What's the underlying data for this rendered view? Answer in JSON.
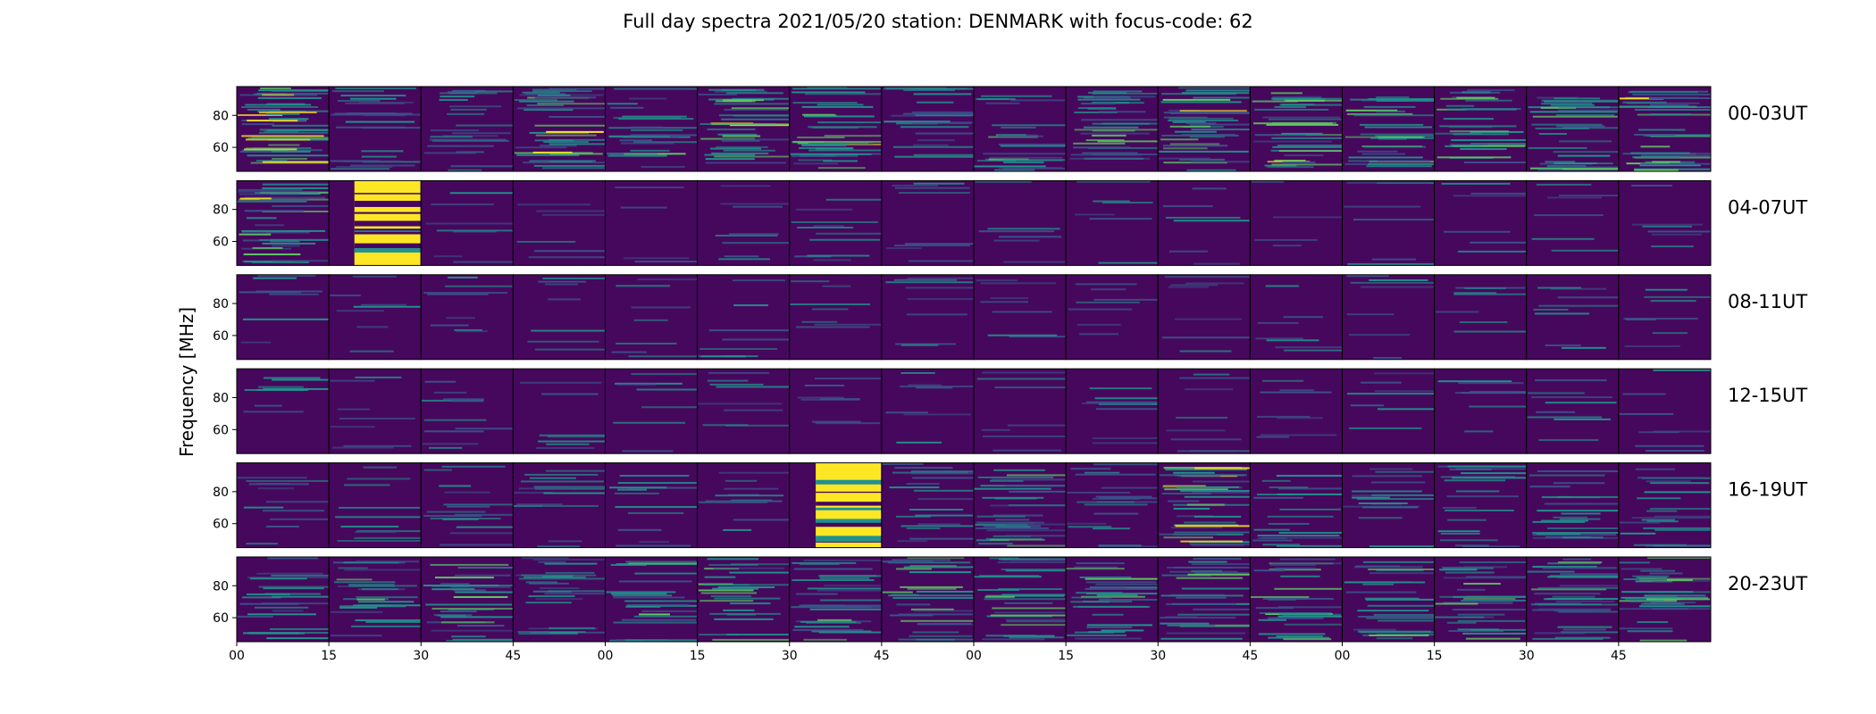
{
  "chart_data": {
    "type": "heatmap",
    "title": "Full day spectra 2021/05/20 station: DENMARK with focus-code: 62",
    "ylabel": "Frequency [MHz]",
    "ylim": [
      45,
      98
    ],
    "y_ticks": [
      "80",
      "60"
    ],
    "y_tick_values": [
      80,
      60
    ],
    "x_ticks": [
      "00",
      "15",
      "30",
      "45",
      "00",
      "15",
      "30",
      "45",
      "00",
      "15",
      "30",
      "45",
      "00",
      "15",
      "30",
      "45"
    ],
    "x_tick_minutes": [
      0,
      15,
      30,
      45,
      60,
      75,
      90,
      105,
      120,
      135,
      150,
      165,
      180,
      195,
      210,
      225
    ],
    "x_range_minutes": [
      0,
      240
    ],
    "panel_minutes": 15,
    "panels_per_row": 16,
    "colormap": {
      "name": "viridis",
      "low": "#440154",
      "background": "#46085c",
      "mid_low": "#3b528b",
      "mid": "#21918c",
      "mid_high": "#5ec962",
      "high": "#fde725"
    },
    "rows": [
      {
        "label": "00-03UT",
        "intensity": [
          3.3,
          1.6,
          1.6,
          2.5,
          1.7,
          2.4,
          2.4,
          1.6,
          1.8,
          2.3,
          2.4,
          2.4,
          2.1,
          2.1,
          2.2,
          2.5
        ]
      },
      {
        "label": "04-07UT",
        "intensity": [
          2.6,
          4.5,
          0.5,
          0.4,
          0.3,
          0.6,
          0.7,
          0.6,
          0.4,
          0.4,
          0.4,
          0.3,
          0.4,
          0.4,
          0.4,
          0.4
        ]
      },
      {
        "label": "08-11UT",
        "intensity": [
          0.5,
          0.5,
          0.6,
          0.5,
          0.5,
          0.6,
          0.5,
          0.6,
          0.5,
          0.5,
          0.5,
          0.5,
          0.5,
          0.5,
          0.6,
          0.5
        ]
      },
      {
        "label": "12-15UT",
        "intensity": [
          0.6,
          0.5,
          0.7,
          0.5,
          0.5,
          0.6,
          0.5,
          0.5,
          0.5,
          0.6,
          0.6,
          0.5,
          0.5,
          0.5,
          0.6,
          0.5
        ]
      },
      {
        "label": "16-19UT",
        "intensity": [
          0.8,
          0.7,
          1.0,
          1.0,
          0.8,
          0.7,
          4.2,
          1.3,
          2.2,
          1.3,
          2.6,
          1.3,
          1.1,
          1.3,
          1.5,
          1.4
        ]
      },
      {
        "label": "20-23UT",
        "intensity": [
          1.6,
          1.8,
          1.9,
          1.8,
          1.6,
          1.8,
          1.9,
          2.0,
          1.9,
          2.0,
          2.0,
          1.9,
          1.8,
          2.0,
          2.2,
          2.3
        ]
      }
    ]
  }
}
